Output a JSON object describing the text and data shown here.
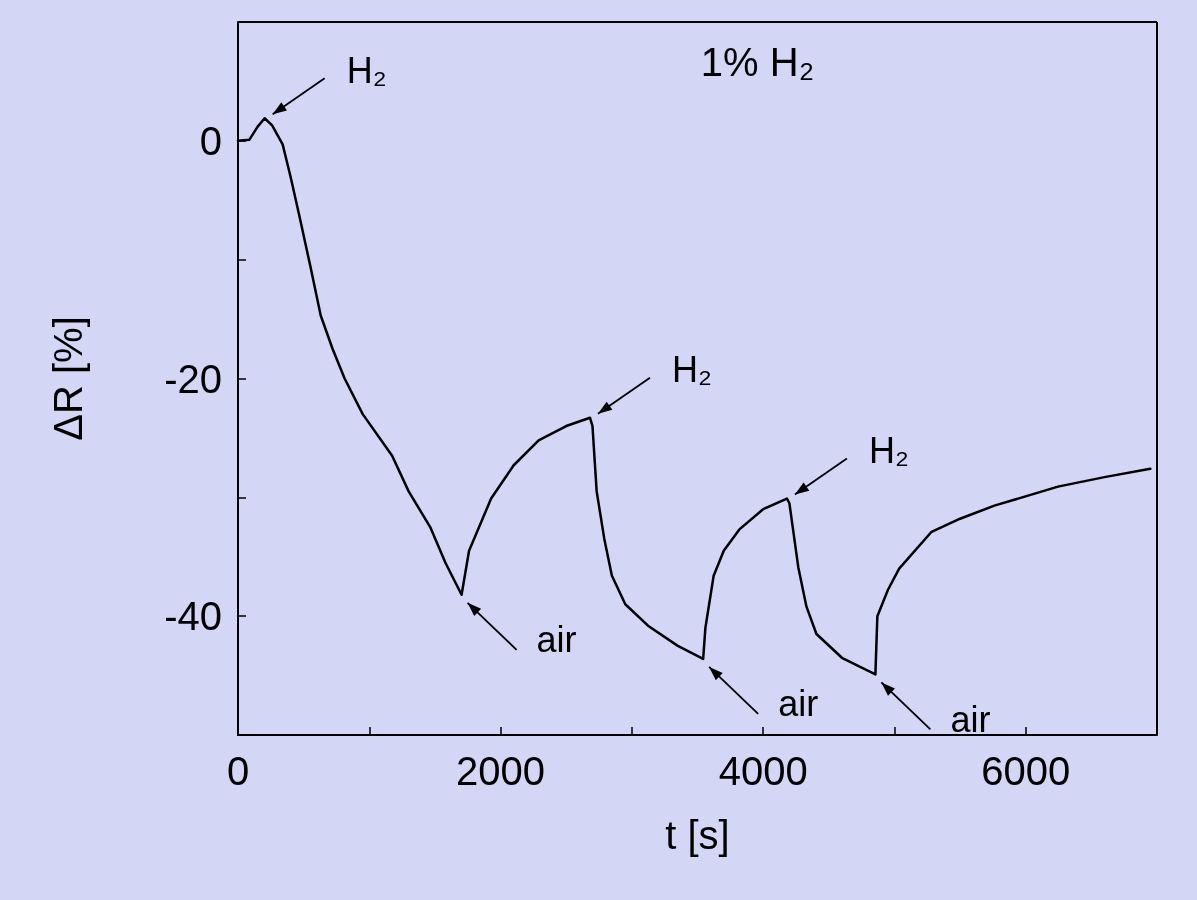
{
  "chart_data": {
    "type": "line",
    "xlabel": "t [s]",
    "ylabel": "ΔR [%]",
    "xlim": [
      0,
      7000
    ],
    "xticks": [
      0,
      {
        "value": 1000,
        "label": null
      },
      2000,
      {
        "value": 3000,
        "label": null
      },
      4000,
      {
        "value": 5000,
        "label": null
      },
      6000,
      {
        "value": 7000,
        "label": null
      }
    ],
    "ylim": [
      -50,
      10
    ],
    "yticks": [
      {
        "value": -50,
        "label": null
      },
      -40,
      {
        "value": -30,
        "label": null
      },
      -20,
      {
        "value": -10,
        "label": null
      },
      0,
      {
        "value": 10,
        "label": null
      }
    ],
    "grid": false,
    "marker": "none",
    "line_style": "solid",
    "series": [
      {
        "color": "#000000",
        "x": [
          0,
          87,
          150,
          203,
          260,
          340,
          400,
          471,
          550,
          630,
          720,
          812,
          950,
          1174,
          1300,
          1464,
          1580,
          1703,
          1760,
          1928,
          2100,
          2290,
          2500,
          2681,
          2700,
          2732,
          2790,
          2848,
          2950,
          3123,
          3350,
          3543,
          3560,
          3623,
          3700,
          3819,
          4000,
          4181,
          4200,
          4268,
          4330,
          4406,
          4600,
          4855,
          4870,
          4950,
          5036,
          5283,
          5500,
          5761,
          6246,
          6600,
          6949
        ],
        "values": [
          0,
          0.1,
          1.2,
          1.9,
          1.3,
          -0.3,
          -3,
          -6.5,
          -10.5,
          -14.7,
          -17.5,
          -20,
          -23,
          -26.5,
          -29.5,
          -32.5,
          -35.5,
          -38.2,
          -34.5,
          -30.1,
          -27.3,
          -25.2,
          -24,
          -23.3,
          -24,
          -29.5,
          -33.5,
          -36.6,
          -39,
          -40.8,
          -42.5,
          -43.6,
          -41,
          -36.6,
          -34.5,
          -32.7,
          -31,
          -30.1,
          -30.5,
          -35.9,
          -39.2,
          -41.5,
          -43.5,
          -44.9,
          -40,
          -37.8,
          -36,
          -32.9,
          -31.8,
          -30.7,
          -29.1,
          -28.3,
          -27.6
        ]
      }
    ],
    "annotations": [
      "1% H₂",
      {
        "text": "H₂",
        "x": 203,
        "y": 1.9
      },
      {
        "text": "air",
        "x": 1703,
        "y": -38.2
      },
      {
        "text": "H₂",
        "x": 2681,
        "y": -23.3
      },
      {
        "text": "air",
        "x": 3543,
        "y": -43.6
      },
      {
        "text": "H₂",
        "x": 4181,
        "y": -30.1
      },
      {
        "text": "air",
        "x": 4855,
        "y": -44.9
      }
    ]
  }
}
